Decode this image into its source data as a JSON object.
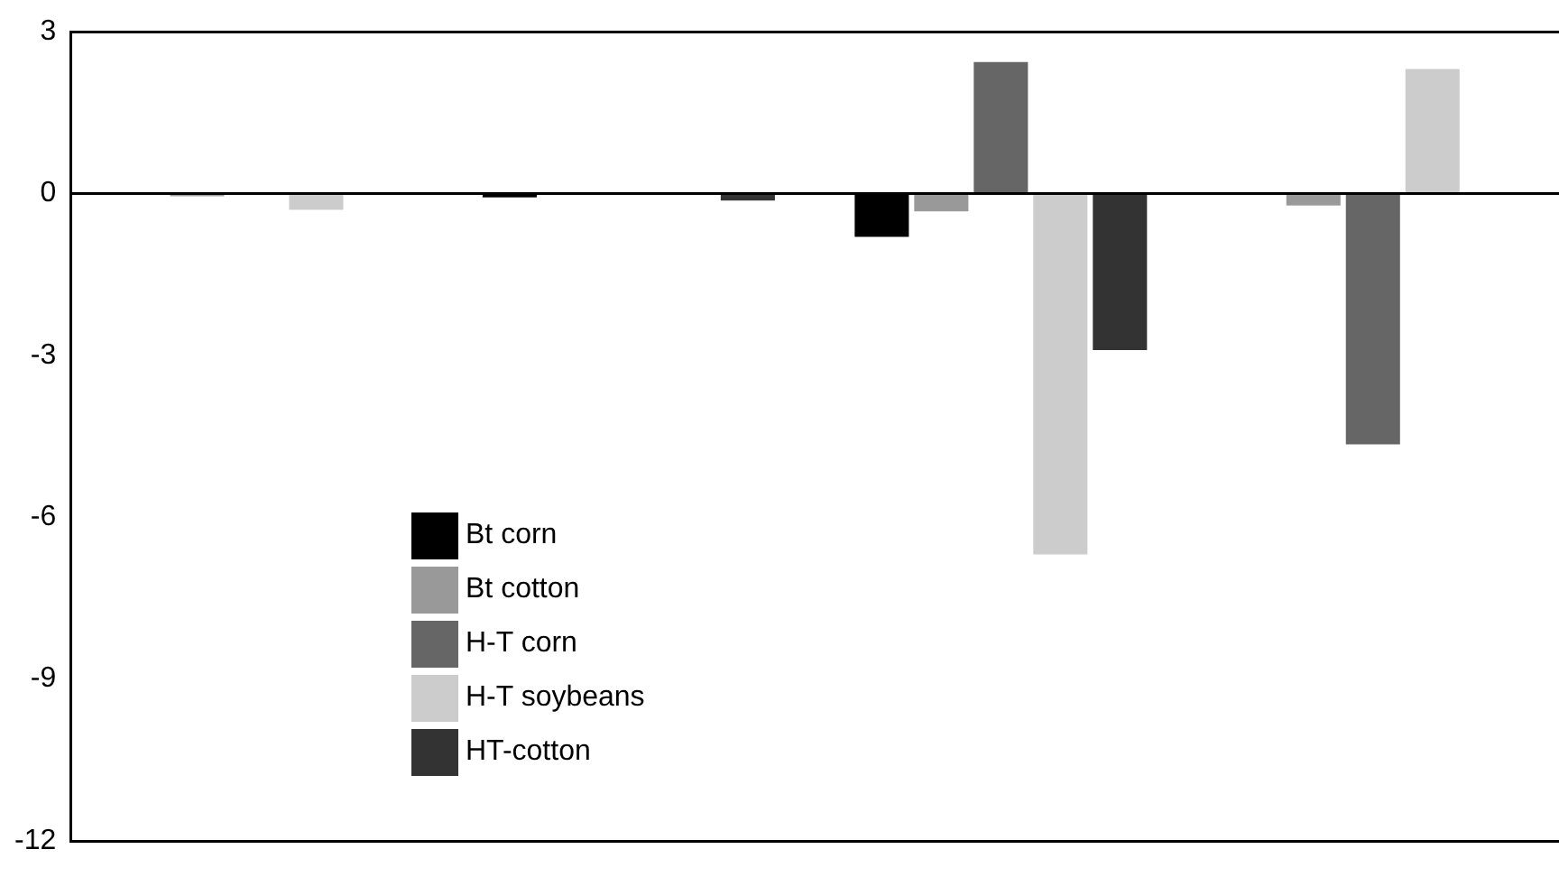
{
  "chart_data": {
    "type": "bar",
    "categories": [
      null,
      null,
      null,
      null
    ],
    "series": [
      {
        "name": "Bt corn",
        "color": "#000000",
        "values": [
          0,
          -0.07,
          -0.8,
          0
        ]
      },
      {
        "name": "Bt cotton",
        "color": "#999999",
        "values": [
          -0.05,
          0,
          -0.33,
          -0.22
        ]
      },
      {
        "name": "H-T corn",
        "color": "#666666",
        "values": [
          0,
          0,
          2.44,
          -4.65
        ]
      },
      {
        "name": "H-T soybeans",
        "color": "#cccccc",
        "values": [
          -0.3,
          0,
          -6.69,
          2.31
        ]
      },
      {
        "name": "HT-cotton",
        "color": "#333333",
        "values": [
          0,
          -0.13,
          -2.9,
          0
        ]
      }
    ],
    "ref_lines": [
      {
        "axis": "y",
        "value": 0,
        "color": "#000000"
      }
    ],
    "ylim": [
      -12,
      3
    ],
    "yticks": [
      -12,
      -9,
      -6,
      -3,
      0,
      3
    ],
    "legend": "bottom left",
    "grid": false
  }
}
